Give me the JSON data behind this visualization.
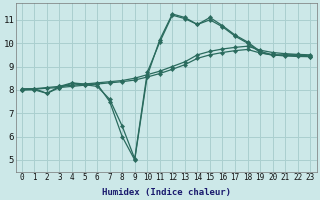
{
  "xlabel": "Humidex (Indice chaleur)",
  "bg_color": "#cce8e8",
  "grid_color": "#aacfcf",
  "line_color": "#2a6b5e",
  "xlim": [
    -0.5,
    23.5
  ],
  "ylim": [
    4.5,
    11.7
  ],
  "xticks": [
    0,
    1,
    2,
    3,
    4,
    5,
    6,
    7,
    8,
    9,
    10,
    11,
    12,
    13,
    14,
    15,
    16,
    17,
    18,
    19,
    20,
    21,
    22,
    23
  ],
  "yticks": [
    5,
    6,
    7,
    8,
    9,
    10,
    11
  ],
  "series": [
    {
      "x": [
        0,
        1,
        2,
        3,
        4,
        5,
        6,
        7,
        8,
        9,
        10,
        11,
        12,
        13,
        14,
        15,
        16,
        17,
        18,
        19,
        20,
        21,
        22,
        23
      ],
      "y": [
        8.05,
        8.05,
        7.85,
        8.15,
        8.3,
        8.25,
        8.25,
        7.5,
        6.0,
        5.0,
        8.6,
        10.15,
        11.25,
        11.1,
        10.8,
        11.1,
        10.75,
        10.35,
        10.05,
        9.65,
        9.5,
        9.5,
        9.5,
        9.45
      ]
    },
    {
      "x": [
        0,
        1,
        2,
        3,
        4,
        5,
        6,
        7,
        8,
        9,
        10,
        11,
        12,
        13,
        14,
        15,
        16,
        17,
        18,
        19,
        20,
        21,
        22,
        23
      ],
      "y": [
        8.0,
        8.0,
        7.85,
        8.1,
        8.28,
        8.22,
        8.15,
        7.6,
        6.45,
        5.05,
        8.75,
        10.05,
        11.2,
        11.05,
        10.8,
        11.0,
        10.7,
        10.3,
        10.0,
        9.6,
        9.48,
        9.48,
        9.48,
        9.42
      ]
    },
    {
      "x": [
        0,
        1,
        2,
        3,
        4,
        5,
        6,
        7,
        8,
        9,
        10,
        11,
        12,
        13,
        14,
        15,
        16,
        17,
        18,
        19,
        20,
        21,
        22,
        23
      ],
      "y": [
        8.0,
        8.05,
        8.1,
        8.15,
        8.2,
        8.25,
        8.3,
        8.35,
        8.4,
        8.5,
        8.65,
        8.8,
        9.0,
        9.2,
        9.5,
        9.65,
        9.75,
        9.82,
        9.87,
        9.7,
        9.6,
        9.55,
        9.52,
        9.5
      ]
    },
    {
      "x": [
        0,
        1,
        2,
        3,
        4,
        5,
        6,
        7,
        8,
        9,
        10,
        11,
        12,
        13,
        14,
        15,
        16,
        17,
        18,
        19,
        20,
        21,
        22,
        23
      ],
      "y": [
        8.0,
        8.03,
        8.07,
        8.1,
        8.15,
        8.2,
        8.25,
        8.3,
        8.35,
        8.42,
        8.55,
        8.7,
        8.88,
        9.08,
        9.35,
        9.5,
        9.6,
        9.68,
        9.73,
        9.58,
        9.5,
        9.45,
        9.43,
        9.42
      ]
    }
  ]
}
